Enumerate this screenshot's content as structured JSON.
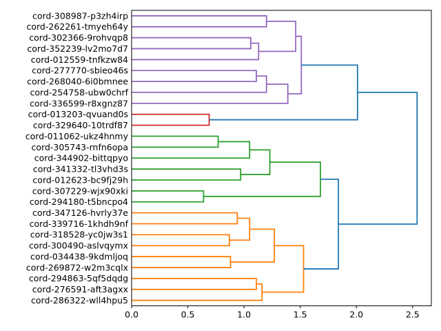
{
  "figure": {
    "background": "#ffffff",
    "title": ""
  },
  "colors": {
    "cluster_purple": "#9467bd",
    "cluster_red": "#d62728",
    "cluster_green": "#2ca02c",
    "cluster_orange": "#ff7f0e",
    "above_threshold_blue": "#1f77b4",
    "axis": "#000000"
  },
  "chart_data": {
    "type": "dendrogram",
    "orientation": "right",
    "title": "",
    "xlabel": "",
    "ylabel": "",
    "grid": false,
    "xlim": [
      0,
      2.667
    ],
    "x_ticks": [
      0.0,
      0.5,
      1.0,
      1.5,
      2.0,
      2.5
    ],
    "x_tick_labels": [
      "0.0",
      "0.5",
      "1.0",
      "1.5",
      "2.0",
      "2.5"
    ],
    "leaves": [
      "cord-308987-p3zh4irp",
      "cord-262261-tmyeh64y",
      "cord-302366-9rohvqp8",
      "cord-352239-lv2mo7d7",
      "cord-012559-tnfkzw84",
      "cord-277770-sbieo46s",
      "cord-268040-6i0bmnee",
      "cord-254758-ubw0chrf",
      "cord-336599-r8xgnz87",
      "cord-013203-qvuand0s",
      "cord-329640-10trdf87",
      "cord-011062-ukz4hnmy",
      "cord-305743-rnfn6opa",
      "cord-344902-bittqpyo",
      "cord-341332-tl3vhd3s",
      "cord-012623-bc9fj29h",
      "cord-307229-wjx90xki",
      "cord-294180-t5bncpo4",
      "cord-347126-hvrly37e",
      "cord-339716-1khdh9nf",
      "cord-318528-yc0jw3s1",
      "cord-300490-aslvqymx",
      "cord-034438-9kdmljoq",
      "cord-269872-w2m3cqlx",
      "cord-294863-5qf5dqdg",
      "cord-276591-aft3agxx",
      "cord-286322-wll4hpu5"
    ],
    "links": [
      {
        "id": "A",
        "a": "L0",
        "b": "L1",
        "h": 1.2,
        "color": "#9467bd"
      },
      {
        "id": "B",
        "a": "L2",
        "b": "L3",
        "h": 1.06,
        "color": "#9467bd"
      },
      {
        "id": "C",
        "a": "B",
        "b": "L4",
        "h": 1.13,
        "color": "#9467bd"
      },
      {
        "id": "D",
        "a": "A",
        "b": "C",
        "h": 1.46,
        "color": "#9467bd"
      },
      {
        "id": "E",
        "a": "L5",
        "b": "L6",
        "h": 1.11,
        "color": "#9467bd"
      },
      {
        "id": "F",
        "a": "E",
        "b": "L7",
        "h": 1.2,
        "color": "#9467bd"
      },
      {
        "id": "G",
        "a": "F",
        "b": "L8",
        "h": 1.39,
        "color": "#9467bd"
      },
      {
        "id": "H",
        "a": "D",
        "b": "G",
        "h": 1.51,
        "color": "#9467bd"
      },
      {
        "id": "I",
        "a": "L9",
        "b": "L10",
        "h": 0.69,
        "color": "#d62728"
      },
      {
        "id": "J",
        "a": "L11",
        "b": "L12",
        "h": 0.77,
        "color": "#2ca02c"
      },
      {
        "id": "K",
        "a": "J",
        "b": "L13",
        "h": 1.05,
        "color": "#2ca02c"
      },
      {
        "id": "L",
        "a": "L14",
        "b": "L15",
        "h": 0.97,
        "color": "#2ca02c"
      },
      {
        "id": "M",
        "a": "K",
        "b": "L",
        "h": 1.23,
        "color": "#2ca02c"
      },
      {
        "id": "N",
        "a": "L16",
        "b": "L17",
        "h": 0.64,
        "color": "#2ca02c"
      },
      {
        "id": "O",
        "a": "M",
        "b": "N",
        "h": 1.68,
        "color": "#2ca02c"
      },
      {
        "id": "P",
        "a": "L18",
        "b": "L19",
        "h": 0.94,
        "color": "#ff7f0e"
      },
      {
        "id": "Q",
        "a": "L20",
        "b": "L21",
        "h": 0.87,
        "color": "#ff7f0e"
      },
      {
        "id": "R",
        "a": "P",
        "b": "Q",
        "h": 1.05,
        "color": "#ff7f0e"
      },
      {
        "id": "S",
        "a": "L22",
        "b": "L23",
        "h": 0.88,
        "color": "#ff7f0e"
      },
      {
        "id": "T",
        "a": "R",
        "b": "S",
        "h": 1.27,
        "color": "#ff7f0e"
      },
      {
        "id": "U",
        "a": "L24",
        "b": "L25",
        "h": 1.11,
        "color": "#ff7f0e"
      },
      {
        "id": "V",
        "a": "U",
        "b": "L26",
        "h": 1.16,
        "color": "#ff7f0e"
      },
      {
        "id": "W",
        "a": "T",
        "b": "V",
        "h": 1.53,
        "color": "#ff7f0e"
      },
      {
        "id": "X",
        "a": "H",
        "b": "I",
        "h": 2.01,
        "color": "#1f77b4"
      },
      {
        "id": "Y",
        "a": "O",
        "b": "W",
        "h": 1.84,
        "color": "#1f77b4"
      },
      {
        "id": "Z",
        "a": "X",
        "b": "Y",
        "h": 2.54,
        "color": "#1f77b4"
      }
    ]
  }
}
